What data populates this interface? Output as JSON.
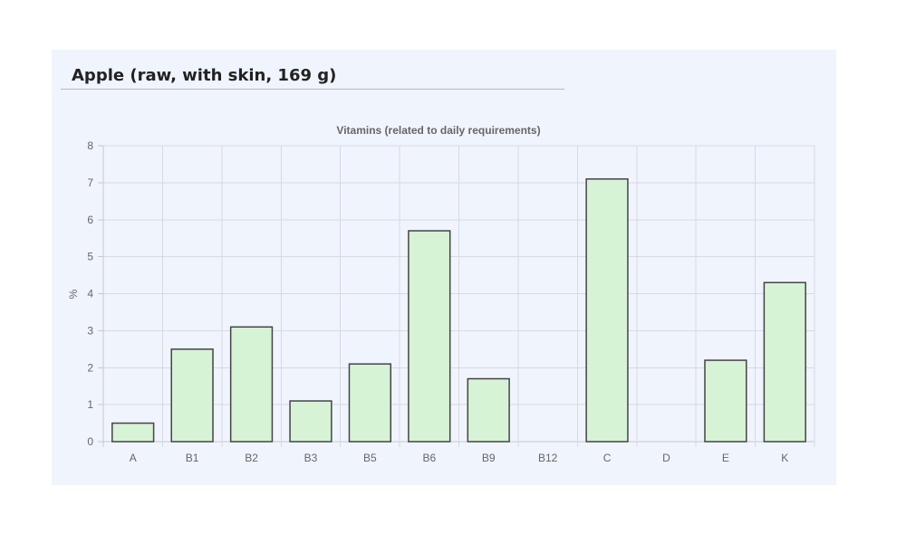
{
  "page": {
    "title": "Apple (raw, with skin, 169 g)"
  },
  "colors": {
    "bar_fill": "#d6f3d6",
    "bar_stroke": "#444444",
    "card_bg": "#f0f4fd"
  },
  "chart_data": {
    "type": "bar",
    "title": "Vitamins (related to daily requirements)",
    "xlabel": "",
    "ylabel": "%",
    "categories": [
      "A",
      "B1",
      "B2",
      "B3",
      "B5",
      "B6",
      "B9",
      "B12",
      "C",
      "D",
      "E",
      "K"
    ],
    "values": [
      0.5,
      2.5,
      3.1,
      1.1,
      2.1,
      5.7,
      1.7,
      0,
      7.1,
      0,
      2.2,
      4.3
    ],
    "ylim": [
      0,
      8
    ],
    "yticks": [
      0,
      1,
      2,
      3,
      4,
      5,
      6,
      7,
      8
    ],
    "grid": true,
    "legend": "none"
  }
}
